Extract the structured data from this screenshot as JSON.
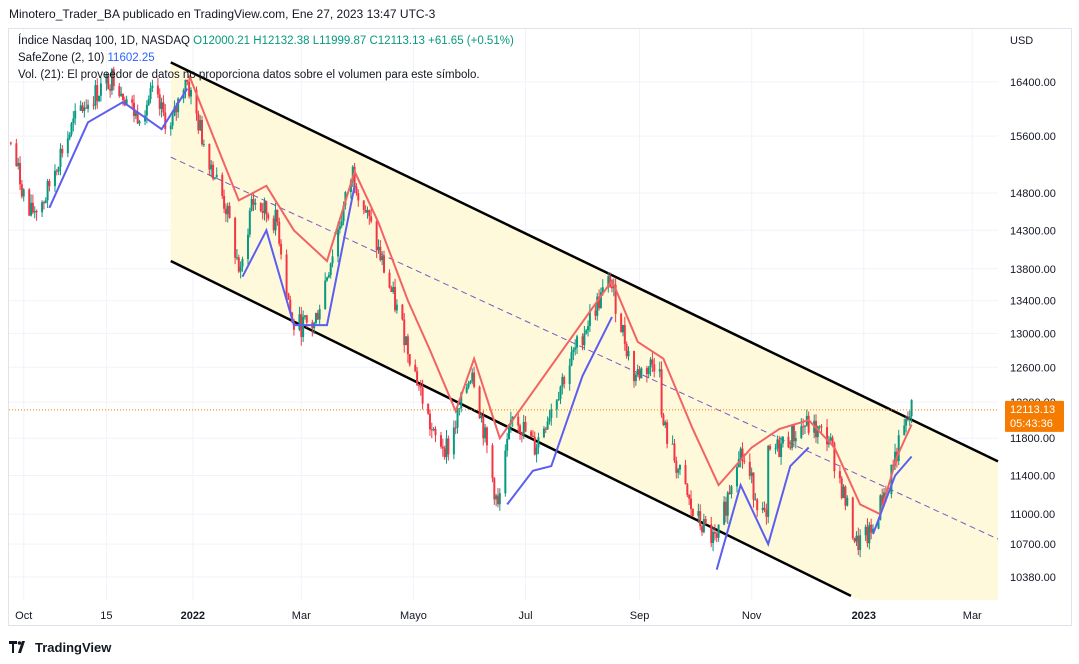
{
  "header": {
    "publisher_text": "Minotero_Trader_BA publicado en TradingView.com, Ene 27, 2023 13:47 UTC-3"
  },
  "legend": {
    "symbol": "Índice Nasdaq 100, 1D, NASDAQ",
    "open": "O12000.21",
    "high": "H12132.38",
    "low": "L11999.87",
    "close": "C12113.13",
    "change": "+61.65 (+0.51%)",
    "safezone_label": "SafeZone (2, 10)",
    "safezone_value": "11602.25",
    "volume_text": "Vol. (21): El proveedor de datos no proporciona datos sobre el volumen para este símbolo."
  },
  "price_axis": {
    "currency": "USD",
    "ticks": [
      "16400.00",
      "15600.00",
      "14800.00",
      "14300.00",
      "13800.00",
      "13400.00",
      "13000.00",
      "12600.00",
      "12200.00",
      "11800.00",
      "11400.00",
      "11000.00",
      "10700.00",
      "10380.00"
    ],
    "last_price": "12113.13",
    "countdown": "05:43:36"
  },
  "time_axis": {
    "ticks": [
      "Oct",
      "15",
      "2022",
      "Mar",
      "Mayo",
      "Jul",
      "Sep",
      "Nov",
      "2023",
      "Mar"
    ]
  },
  "colors": {
    "up": "#089981",
    "down": "#f23645",
    "safezone_long": "#5b5ef0",
    "safezone_short": "#f26363",
    "channel_fill": "#fff9db",
    "channel_line": "#000000",
    "midline": "#7e57c2",
    "last_price_tag": "#f57c00"
  },
  "chart_data": {
    "type": "candlestick",
    "symbol": "Índice Nasdaq 100",
    "interval": "1D",
    "y_scale": "log",
    "ylim": [
      10200,
      16800
    ],
    "x_range": [
      "2021-09-23",
      "2023-03-15"
    ],
    "close_path": [
      {
        "date": "2021-09-24",
        "close": 15500
      },
      {
        "date": "2021-10-04",
        "close": 14500
      },
      {
        "date": "2021-10-13",
        "close": 14750
      },
      {
        "date": "2021-10-20",
        "close": 15300
      },
      {
        "date": "2021-11-01",
        "close": 16000
      },
      {
        "date": "2021-11-19",
        "close": 16500
      },
      {
        "date": "2021-12-01",
        "close": 15900
      },
      {
        "date": "2021-12-10",
        "close": 16200
      },
      {
        "date": "2021-12-20",
        "close": 15700
      },
      {
        "date": "2021-12-28",
        "close": 16500
      },
      {
        "date": "2022-01-06",
        "close": 15600
      },
      {
        "date": "2022-01-19",
        "close": 14600
      },
      {
        "date": "2022-01-27",
        "close": 13700
      },
      {
        "date": "2022-02-02",
        "close": 14700
      },
      {
        "date": "2022-02-16",
        "close": 14400
      },
      {
        "date": "2022-02-24",
        "close": 13100
      },
      {
        "date": "2022-03-08",
        "close": 13100
      },
      {
        "date": "2022-03-29",
        "close": 15100
      },
      {
        "date": "2022-04-11",
        "close": 14100
      },
      {
        "date": "2022-04-26",
        "close": 13000
      },
      {
        "date": "2022-05-12",
        "close": 11800
      },
      {
        "date": "2022-05-20",
        "close": 11700
      },
      {
        "date": "2022-06-02",
        "close": 12600
      },
      {
        "date": "2022-06-16",
        "close": 11050
      },
      {
        "date": "2022-06-24",
        "close": 12100
      },
      {
        "date": "2022-07-06",
        "close": 11700
      },
      {
        "date": "2022-07-20",
        "close": 12400
      },
      {
        "date": "2022-08-05",
        "close": 13200
      },
      {
        "date": "2022-08-16",
        "close": 13650
      },
      {
        "date": "2022-08-29",
        "close": 12500
      },
      {
        "date": "2022-09-12",
        "close": 12700
      },
      {
        "date": "2022-09-13",
        "close": 12000
      },
      {
        "date": "2022-09-30",
        "close": 11000
      },
      {
        "date": "2022-10-13",
        "close": 10700
      },
      {
        "date": "2022-10-25",
        "close": 11700
      },
      {
        "date": "2022-11-09",
        "close": 10900
      },
      {
        "date": "2022-11-10",
        "close": 11600
      },
      {
        "date": "2022-11-30",
        "close": 11950
      },
      {
        "date": "2022-12-13",
        "close": 11800
      },
      {
        "date": "2022-12-28",
        "close": 10700
      },
      {
        "date": "2023-01-05",
        "close": 10800
      },
      {
        "date": "2023-01-18",
        "close": 11600
      },
      {
        "date": "2023-01-27",
        "close": 12113.13
      }
    ],
    "safezone_long_path": [
      {
        "date": "2021-10-15",
        "value": 14600
      },
      {
        "date": "2021-11-05",
        "value": 15800
      },
      {
        "date": "2021-11-24",
        "value": 16100
      },
      {
        "date": "2021-12-15",
        "value": 15700
      },
      {
        "date": "2021-12-29",
        "value": 16300
      }
    ],
    "safezone_long_path_2": [
      {
        "date": "2022-01-28",
        "value": 13700
      },
      {
        "date": "2022-02-10",
        "value": 14300
      },
      {
        "date": "2022-02-25",
        "value": 13100
      },
      {
        "date": "2022-03-15",
        "value": 13100
      },
      {
        "date": "2022-03-30",
        "value": 14900
      }
    ],
    "safezone_long_path_3": [
      {
        "date": "2022-06-21",
        "value": 11100
      },
      {
        "date": "2022-07-05",
        "value": 11450
      },
      {
        "date": "2022-07-15",
        "value": 11500
      },
      {
        "date": "2022-08-01",
        "value": 12500
      },
      {
        "date": "2022-08-17",
        "value": 13200
      }
    ],
    "safezone_long_path_4": [
      {
        "date": "2022-10-13",
        "value": 10450
      },
      {
        "date": "2022-10-26",
        "value": 11300
      },
      {
        "date": "2022-11-10",
        "value": 10700
      },
      {
        "date": "2022-11-22",
        "value": 11500
      },
      {
        "date": "2022-12-02",
        "value": 11700
      }
    ],
    "safezone_long_path_5": [
      {
        "date": "2023-01-06",
        "value": 10800
      },
      {
        "date": "2023-01-18",
        "value": 11400
      },
      {
        "date": "2023-01-27",
        "value": 11602.25
      }
    ],
    "safezone_short_path": [
      {
        "date": "2021-12-30",
        "value": 16500
      },
      {
        "date": "2022-01-12",
        "value": 15600
      },
      {
        "date": "2022-01-26",
        "value": 14700
      },
      {
        "date": "2022-02-10",
        "value": 14900
      },
      {
        "date": "2022-02-25",
        "value": 14300
      },
      {
        "date": "2022-03-15",
        "value": 13900
      },
      {
        "date": "2022-03-30",
        "value": 15100
      },
      {
        "date": "2022-04-12",
        "value": 14400
      },
      {
        "date": "2022-04-28",
        "value": 13400
      },
      {
        "date": "2022-05-10",
        "value": 12800
      },
      {
        "date": "2022-05-24",
        "value": 12100
      },
      {
        "date": "2022-06-03",
        "value": 12700
      },
      {
        "date": "2022-06-17",
        "value": 11800
      },
      {
        "date": "2022-08-17",
        "value": 13650
      },
      {
        "date": "2022-08-31",
        "value": 12900
      },
      {
        "date": "2022-09-14",
        "value": 12700
      },
      {
        "date": "2022-09-30",
        "value": 11900
      },
      {
        "date": "2022-10-14",
        "value": 11300
      },
      {
        "date": "2022-11-01",
        "value": 11700
      },
      {
        "date": "2022-11-16",
        "value": 11900
      },
      {
        "date": "2022-12-02",
        "value": 12000
      },
      {
        "date": "2022-12-16",
        "value": 11700
      },
      {
        "date": "2022-12-30",
        "value": 11100
      },
      {
        "date": "2023-01-10",
        "value": 11000
      },
      {
        "date": "2023-01-19",
        "value": 11600
      },
      {
        "date": "2023-01-27",
        "value": 11950
      }
    ],
    "channel": {
      "upper": [
        {
          "date": "2021-12-20",
          "value": 16700
        },
        {
          "date": "2023-03-15",
          "value": 11550
        }
      ],
      "lower": [
        {
          "date": "2021-12-20",
          "value": 13900
        },
        {
          "date": "2022-12-25",
          "value": 10200
        }
      ],
      "midline": [
        {
          "date": "2021-12-20",
          "value": 15300
        },
        {
          "date": "2023-03-15",
          "value": 10750
        }
      ]
    },
    "last_price": 12113.13
  }
}
